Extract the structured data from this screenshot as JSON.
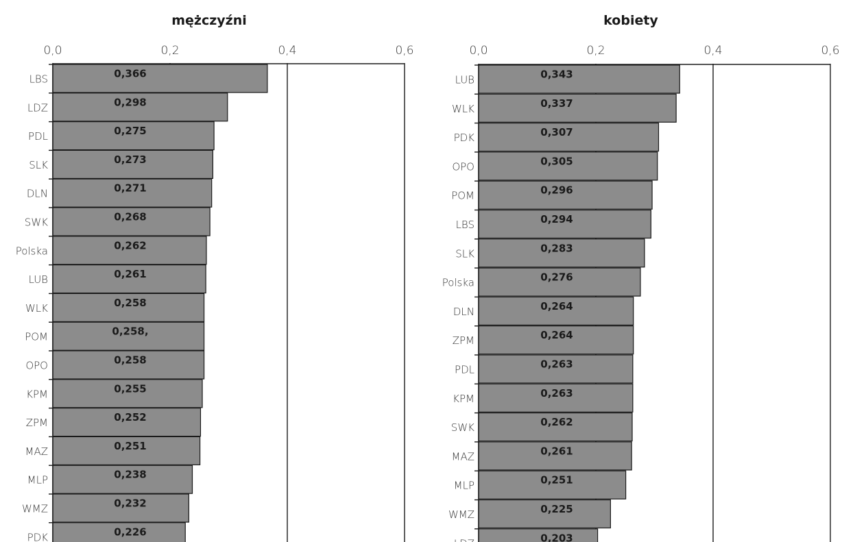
{
  "chart_data": [
    {
      "type": "bar",
      "orientation": "horizontal",
      "title": "mężczyźni",
      "xlim": [
        0,
        0.6
      ],
      "ticks": [
        "0,0",
        "0,2",
        "0,4",
        "0,6"
      ],
      "tick_values": [
        0,
        0.2,
        0.4,
        0.6
      ],
      "grid": true,
      "categories": [
        "LBS",
        "LDZ",
        "PDL",
        "SLK",
        "DLN",
        "SWK",
        "Polska",
        "LUB",
        "WLK",
        "POM",
        "OPO",
        "KPM",
        "ZPM",
        "MAZ",
        "MLP",
        "WMZ",
        "PDK"
      ],
      "values": [
        0.366,
        0.298,
        0.275,
        0.273,
        0.271,
        0.268,
        0.262,
        0.261,
        0.258,
        0.258,
        0.258,
        0.255,
        0.252,
        0.251,
        0.238,
        0.232,
        0.226
      ],
      "labels": [
        "0,366",
        "0,298",
        "0,275",
        "0,273",
        "0,271",
        "0,268",
        "0,262",
        "0,261",
        "0,258",
        "0,258,",
        "0,258",
        "0,255",
        "0,252",
        "0,251",
        "0,238",
        "0,232",
        "0,226"
      ]
    },
    {
      "type": "bar",
      "orientation": "horizontal",
      "title": "kobiety",
      "xlim": [
        0,
        0.6
      ],
      "ticks": [
        "0,0",
        "0,2",
        "0,4",
        "0,6"
      ],
      "tick_values": [
        0,
        0.2,
        0.4,
        0.6
      ],
      "grid": true,
      "categories": [
        "LUB",
        "WLK",
        "PDK",
        "OPO",
        "POM",
        "LBS",
        "SLK",
        "Polska",
        "DLN",
        "ZPM",
        "PDL",
        "KPM",
        "SWK",
        "MAZ",
        "MLP",
        "WMZ",
        "LDZ"
      ],
      "values": [
        0.343,
        0.337,
        0.307,
        0.305,
        0.296,
        0.294,
        0.283,
        0.276,
        0.264,
        0.264,
        0.263,
        0.263,
        0.262,
        0.261,
        0.251,
        0.225,
        0.203
      ],
      "labels": [
        "0,343",
        "0,337",
        "0,307",
        "0,305",
        "0,296",
        "0,294",
        "0,283",
        "0,276",
        "0,264",
        "0,264",
        "0,263",
        "0,263",
        "0,262",
        "0,261",
        "0,251",
        "0,225",
        "0,203"
      ]
    }
  ]
}
